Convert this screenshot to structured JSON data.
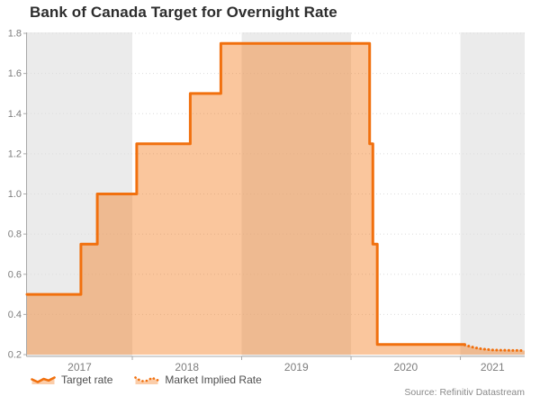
{
  "title": "Bank of Canada Target for Overnight Rate",
  "source": "Source: Refinitiv Datastream",
  "legend": [
    {
      "label": "Target rate",
      "line_style": "solid"
    },
    {
      "label": "Market Implied Rate",
      "line_style": "dotted"
    }
  ],
  "colors": {
    "line": "#f1700e",
    "fill": "rgba(243,112,10,0.40)",
    "legend_fill": "rgba(243,112,10,0.35)",
    "band": "#ebebeb",
    "grid": "#dcdcdc",
    "axis": "#a8a8a8",
    "tick_text": "#7d7d7d",
    "title_text": "#2d2d2d",
    "legend_text": "#4d4d4d",
    "source_text": "#8a8a8a"
  },
  "chart_data": {
    "type": "line",
    "step": true,
    "area_fill": true,
    "title": "Bank of Canada Target for Overnight Rate",
    "xlabel": "",
    "ylabel": "",
    "xlim": [
      2017.037,
      2021.588
    ],
    "ylim": [
      0.2,
      1.8
    ],
    "grid": "horizontal-dotted",
    "legend_position": "bottom-left",
    "yticks": [
      {
        "value": 1.8,
        "label": "1.8"
      },
      {
        "value": 1.6,
        "label": "1.6"
      },
      {
        "value": 1.4,
        "label": "1.4"
      },
      {
        "value": 1.2,
        "label": "1.2"
      },
      {
        "value": 1.0,
        "label": "1.0"
      },
      {
        "value": 0.8,
        "label": "0.8"
      },
      {
        "value": 0.6,
        "label": "0.6"
      },
      {
        "value": 0.4,
        "label": "0.4"
      },
      {
        "value": 0.2,
        "label": "0.2"
      }
    ],
    "xticks": [
      {
        "year": 2017,
        "label": "2017"
      },
      {
        "year": 2018,
        "label": "2018"
      },
      {
        "year": 2019,
        "label": "2019"
      },
      {
        "year": 2020,
        "label": "2020"
      },
      {
        "year": 2021,
        "label": "2021"
      }
    ],
    "shaded_year_bands": [
      [
        2017,
        2018
      ],
      [
        2019,
        2020
      ],
      [
        2021,
        2022
      ]
    ],
    "series": [
      {
        "name": "Target rate",
        "line_style": "solid",
        "step": true,
        "points": [
          [
            2017.037,
            0.5
          ],
          [
            2017.53,
            0.75
          ],
          [
            2017.68,
            1.0
          ],
          [
            2018.04,
            1.25
          ],
          [
            2018.53,
            1.5
          ],
          [
            2018.81,
            1.75
          ],
          [
            2020.17,
            1.25
          ],
          [
            2020.2,
            0.75
          ],
          [
            2020.24,
            0.25
          ],
          [
            2021.04,
            0.25
          ]
        ]
      },
      {
        "name": "Market Implied Rate",
        "line_style": "dotted",
        "step": false,
        "points": [
          [
            2021.04,
            0.248
          ],
          [
            2021.12,
            0.236
          ],
          [
            2021.2,
            0.228
          ],
          [
            2021.3,
            0.223
          ],
          [
            2021.45,
            0.221
          ],
          [
            2021.588,
            0.22
          ]
        ]
      }
    ]
  }
}
